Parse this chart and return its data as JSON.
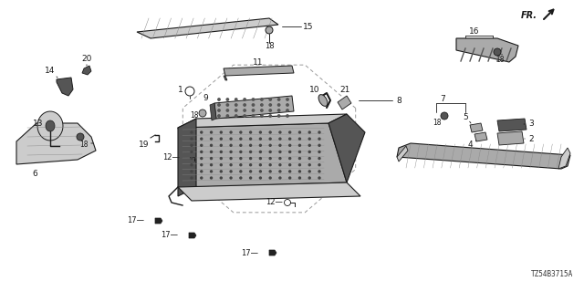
{
  "bg_color": "#ffffff",
  "line_color": "#1a1a1a",
  "diagram_id": "TZ54B3715A",
  "fig_width": 6.4,
  "fig_height": 3.2,
  "dpi": 100
}
